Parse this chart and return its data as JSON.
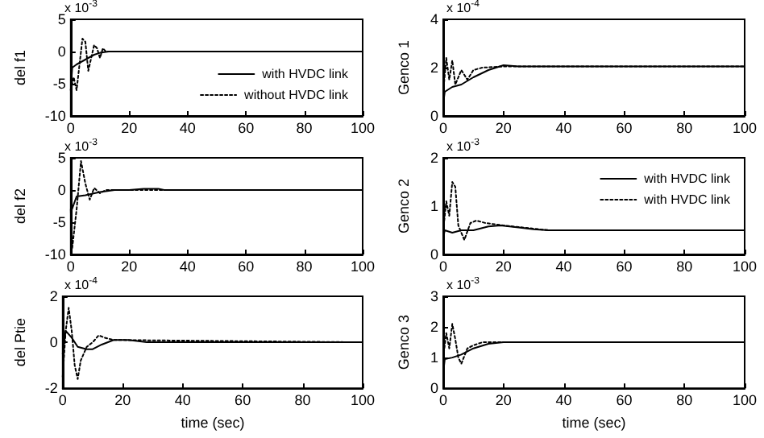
{
  "chart_data": [
    {
      "type": "line",
      "ylabel": "del f1",
      "annotations": [
        "x 10$^{-3}$"
      ],
      "xlim": [
        0,
        100
      ],
      "xticks": [
        0,
        20,
        40,
        60,
        80,
        100
      ],
      "ylim": [
        -10,
        5
      ],
      "yticks": [
        -10,
        -5,
        0,
        5
      ],
      "legend": "bottom right",
      "series": [
        {
          "name": "with HVDC link",
          "color": "#000000",
          "line_style": "solid",
          "x": [
            0,
            0.5,
            2,
            4,
            6,
            8,
            10,
            13,
            100
          ],
          "values": [
            -6,
            -2.5,
            -2,
            -1.5,
            -1,
            -0.5,
            -0.2,
            0,
            0
          ]
        },
        {
          "name": "without HVDC link",
          "color": "#000000",
          "line_style": "dotted",
          "x": [
            0,
            1,
            2,
            3,
            4,
            5,
            6,
            7,
            8,
            9,
            10,
            11,
            12,
            14,
            100
          ],
          "values": [
            -6,
            -4,
            -6,
            -2,
            2,
            1.5,
            -3,
            -1,
            1,
            0.5,
            -1,
            0.5,
            0,
            0,
            0
          ]
        }
      ]
    },
    {
      "type": "line",
      "ylabel": "del f2",
      "annotations": [
        "x 10$^{-3}$"
      ],
      "xlim": [
        0,
        100
      ],
      "xticks": [
        0,
        20,
        40,
        60,
        80,
        100
      ],
      "ylim": [
        -10,
        5
      ],
      "yticks": [
        -10,
        -5,
        0,
        5
      ],
      "series": [
        {
          "color": "#000000",
          "line_style": "solid",
          "x": [
            0,
            2,
            5,
            10,
            15,
            20,
            25,
            30,
            32,
            100
          ],
          "values": [
            -3.5,
            -1,
            -0.8,
            -0.3,
            0,
            0,
            0.2,
            0.2,
            0,
            0
          ]
        },
        {
          "color": "#000000",
          "line_style": "dotted",
          "x": [
            0,
            0.5,
            2,
            3.5,
            5,
            6.5,
            8,
            10,
            12,
            100
          ],
          "values": [
            -3,
            -9,
            -3,
            4.5,
            1,
            -1.5,
            0.3,
            -0.5,
            0,
            0
          ]
        }
      ]
    },
    {
      "type": "line",
      "ylabel": "del Ptie",
      "xlabel": "time (sec)",
      "annotations": [
        "x 10$^{-4}$"
      ],
      "xlim": [
        0,
        100
      ],
      "xticks": [
        0,
        20,
        40,
        60,
        80,
        100
      ],
      "ylim": [
        -2,
        2
      ],
      "yticks": [
        -2,
        0,
        2
      ],
      "series": [
        {
          "color": "#000000",
          "line_style": "solid",
          "x": [
            0,
            1,
            3,
            5,
            8,
            10,
            13,
            17,
            22,
            28,
            100
          ],
          "values": [
            -0.5,
            0.5,
            0.2,
            -0.2,
            -0.3,
            -0.3,
            -0.1,
            0.1,
            0.1,
            0,
            0
          ]
        },
        {
          "color": "#000000",
          "line_style": "dotted",
          "x": [
            0,
            1,
            2,
            3,
            4,
            5,
            6,
            8,
            10,
            12,
            14,
            17,
            100
          ],
          "values": [
            -1.5,
            0.5,
            1.5,
            0.5,
            -1,
            -1.6,
            -0.8,
            -0.2,
            0,
            0.3,
            0.2,
            0.1,
            0
          ]
        }
      ]
    },
    {
      "type": "line",
      "ylabel": "Genco 1",
      "annotations": [
        "x 10$^{-4}$"
      ],
      "xlim": [
        0,
        100
      ],
      "xticks": [
        0,
        20,
        40,
        60,
        80,
        100
      ],
      "ylim": [
        0,
        4
      ],
      "yticks": [
        0,
        2,
        4
      ],
      "series": [
        {
          "color": "#000000",
          "line_style": "solid",
          "x": [
            0,
            0.5,
            3,
            6,
            10,
            15,
            20,
            25,
            100
          ],
          "values": [
            0.5,
            1,
            1.2,
            1.3,
            1.6,
            1.9,
            2.1,
            2.05,
            2.05
          ]
        },
        {
          "color": "#000000",
          "line_style": "dotted",
          "x": [
            0,
            1,
            2,
            3,
            4,
            6,
            8,
            10,
            13,
            20,
            100
          ],
          "values": [
            1,
            2.4,
            1.5,
            2.3,
            1.3,
            1.9,
            1.5,
            1.9,
            2,
            2.05,
            2.05
          ]
        }
      ]
    },
    {
      "type": "line",
      "ylabel": "Genco 2",
      "annotations": [
        "x 10$^{-3}$"
      ],
      "xlim": [
        0,
        100
      ],
      "xticks": [
        0,
        20,
        40,
        60,
        80,
        100
      ],
      "ylim": [
        0,
        2
      ],
      "yticks": [
        0,
        1,
        2
      ],
      "legend": "top right",
      "series": [
        {
          "name": "with HVDC link",
          "color": "#000000",
          "line_style": "solid",
          "x": [
            0,
            0.5,
            3,
            6,
            10,
            15,
            19,
            25,
            30,
            35,
            100
          ],
          "values": [
            0.35,
            0.5,
            0.45,
            0.5,
            0.5,
            0.58,
            0.6,
            0.56,
            0.52,
            0.5,
            0.5
          ]
        },
        {
          "name": "with HVDC link",
          "color": "#000000",
          "line_style": "dotted",
          "x": [
            0,
            1,
            2,
            3,
            4,
            5,
            7,
            9,
            11,
            14,
            20,
            35,
            100
          ],
          "values": [
            0.5,
            1.1,
            0.8,
            1.5,
            1.4,
            0.6,
            0.3,
            0.65,
            0.7,
            0.65,
            0.6,
            0.5,
            0.5
          ]
        }
      ]
    },
    {
      "type": "line",
      "ylabel": "Genco 3",
      "xlabel": "time (sec)",
      "annotations": [
        "x 10$^{-3}$"
      ],
      "xlim": [
        0,
        100
      ],
      "xticks": [
        0,
        20,
        40,
        60,
        80,
        100
      ],
      "ylim": [
        0,
        3
      ],
      "yticks": [
        0,
        1,
        2,
        3
      ],
      "series": [
        {
          "color": "#000000",
          "line_style": "solid",
          "x": [
            0,
            0.5,
            3,
            6,
            10,
            15,
            20,
            100
          ],
          "values": [
            0.5,
            0.95,
            1,
            1.1,
            1.3,
            1.45,
            1.5,
            1.5
          ]
        },
        {
          "color": "#000000",
          "line_style": "dotted",
          "x": [
            0,
            1,
            2,
            3,
            4,
            5,
            6,
            8,
            10,
            13,
            100
          ],
          "values": [
            1,
            1.8,
            1.3,
            2.1,
            1.6,
            1,
            0.8,
            1.3,
            1.4,
            1.5,
            1.5
          ]
        }
      ]
    }
  ]
}
